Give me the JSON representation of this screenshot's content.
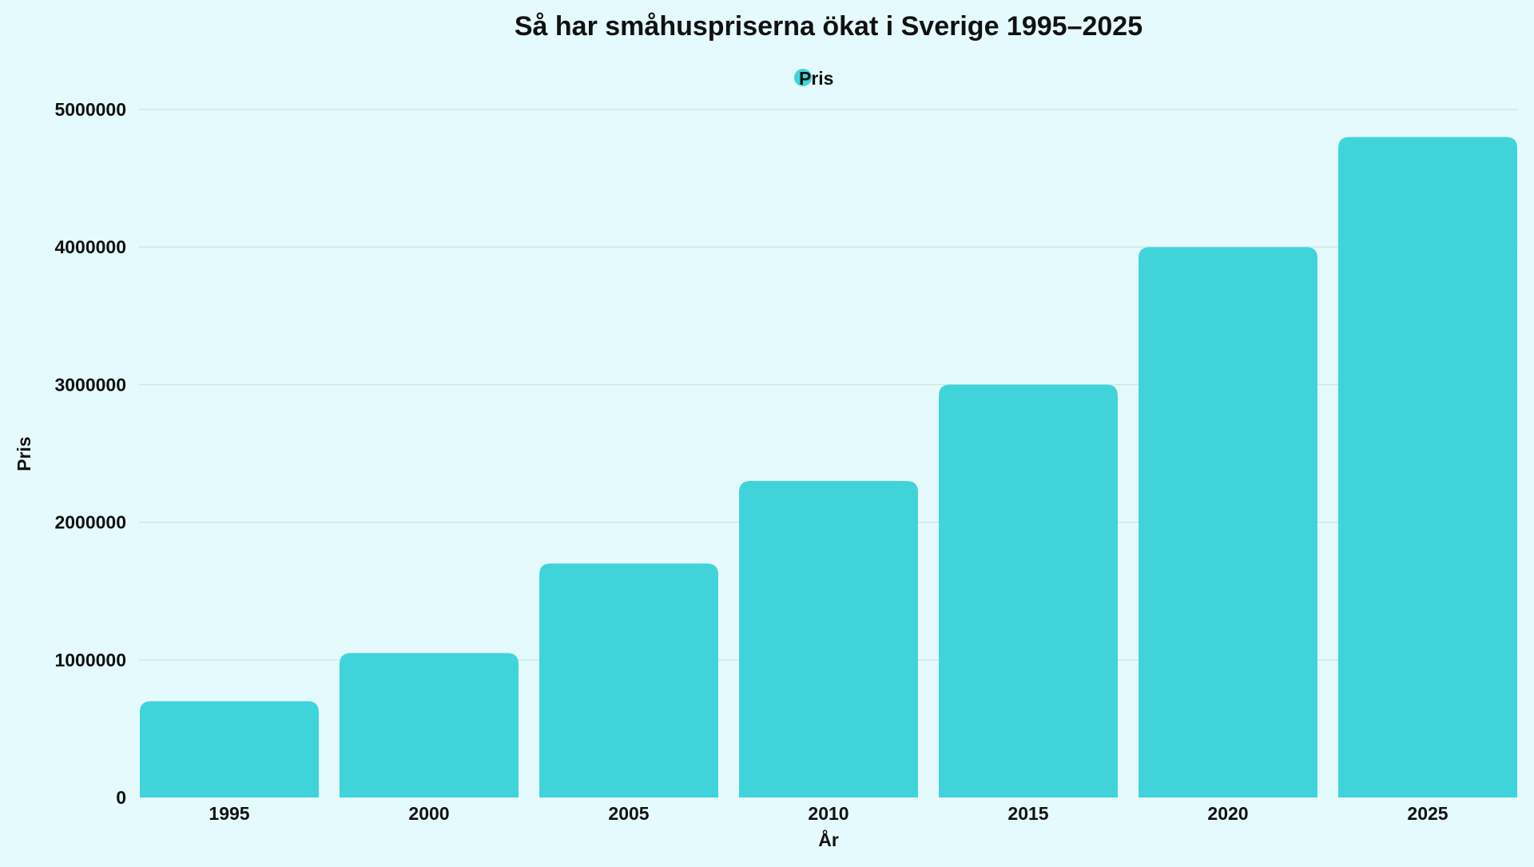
{
  "colors": {
    "background": "#e5fafc",
    "bar": "#40d4da",
    "gridline": "#cde8e4",
    "text": "#111111"
  },
  "chart_data": {
    "type": "bar",
    "title": "Så har småhuspriserna ökat i Sverige 1995–2025",
    "xlabel": "År",
    "ylabel": "Pris",
    "legend": {
      "position": "top-center",
      "entries": [
        "Pris"
      ]
    },
    "categories": [
      "1995",
      "2000",
      "2005",
      "2010",
      "2015",
      "2020",
      "2025"
    ],
    "series": [
      {
        "name": "Pris",
        "values": [
          700000,
          1050000,
          1700000,
          2300000,
          3000000,
          4000000,
          4800000
        ]
      }
    ],
    "ylim": [
      0,
      5000000
    ],
    "yticks": [
      0,
      1000000,
      2000000,
      3000000,
      4000000,
      5000000
    ],
    "ytick_labels": [
      "0",
      "1000000",
      "2000000",
      "3000000",
      "4000000",
      "5000000"
    ],
    "grid": true
  }
}
